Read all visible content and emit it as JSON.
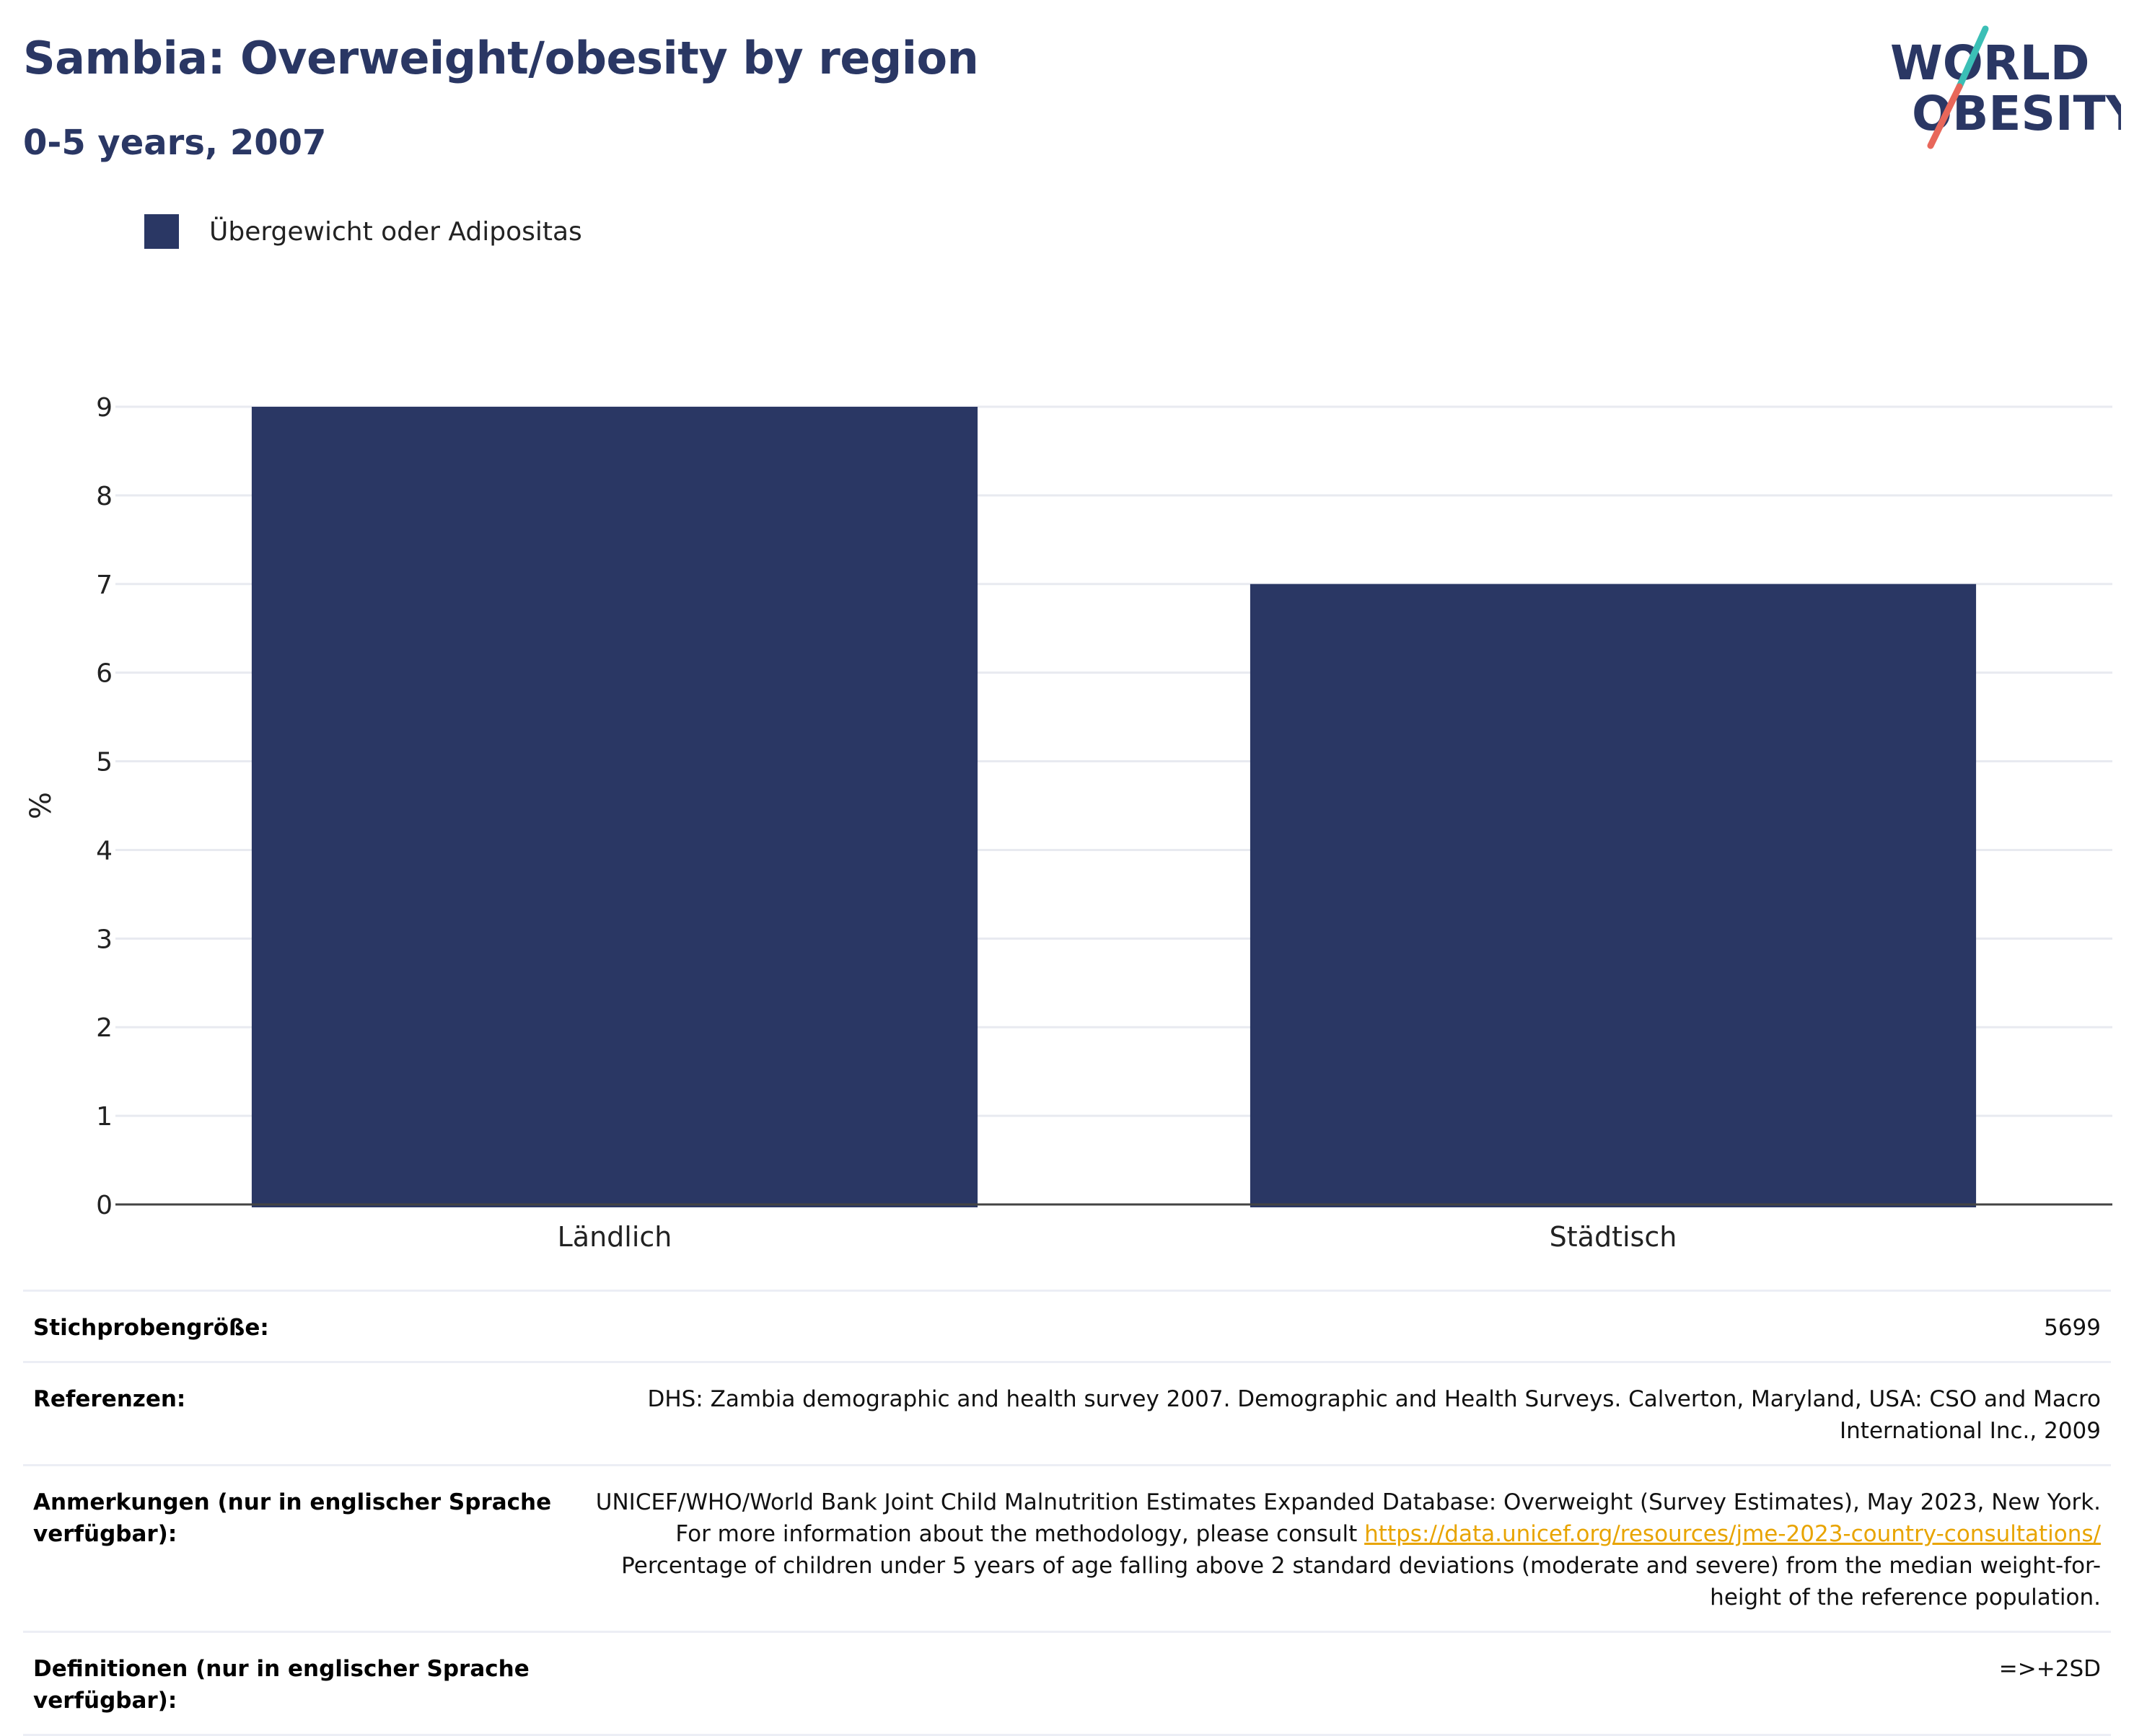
{
  "header": {
    "title": "Sambia: Overweight/obesity by region",
    "subtitle": "0-5 years, 2007"
  },
  "logo": {
    "line1": "WORLD",
    "line2": "OBESITY",
    "colors": {
      "text": "#2a3764",
      "slash_top": "#3bbfb6",
      "slash_bottom": "#e8675a"
    }
  },
  "legend": {
    "label": "Übergewicht oder Adipositas",
    "color": "#2a3764"
  },
  "chart_data": {
    "type": "bar",
    "categories": [
      "Ländlich",
      "Städtisch"
    ],
    "series": [
      {
        "name": "Übergewicht oder Adipositas",
        "values": [
          9.0,
          7.0
        ]
      }
    ],
    "ylabel": "%",
    "xlabel": "",
    "ylim": [
      0,
      9
    ],
    "yticks": [
      0,
      1,
      2,
      3,
      4,
      5,
      6,
      7,
      8,
      9
    ],
    "grid": true,
    "legend_position": "top-left",
    "bar_color": "#2a3764"
  },
  "info": {
    "sample_size": {
      "label": "Stichprobengröße:",
      "value": "5699"
    },
    "references": {
      "label": "Referenzen:",
      "value": "DHS: Zambia demographic and health survey 2007. Demographic and Health Surveys. Calverton, Maryland, USA: CSO and Macro International Inc., 2009"
    },
    "notes": {
      "label": "Anmerkungen (nur in englischer Sprache verfügbar):",
      "text_before": "UNICEF/WHO/World Bank Joint Child Malnutrition Estimates Expanded Database: Overweight (Survey Estimates), May 2023, New York. For more information about the methodology, please consult",
      "link": "https://data.unicef.org/resources/jme-2023-country-consultations/",
      "text_after": "Percentage of children under 5 years of age falling above 2 standard deviations (moderate and severe) from the median weight-for-height of the reference population."
    },
    "definitions": {
      "label": "Definitionen (nur in englischer Sprache verfügbar):",
      "value": "=>+2SD"
    }
  }
}
